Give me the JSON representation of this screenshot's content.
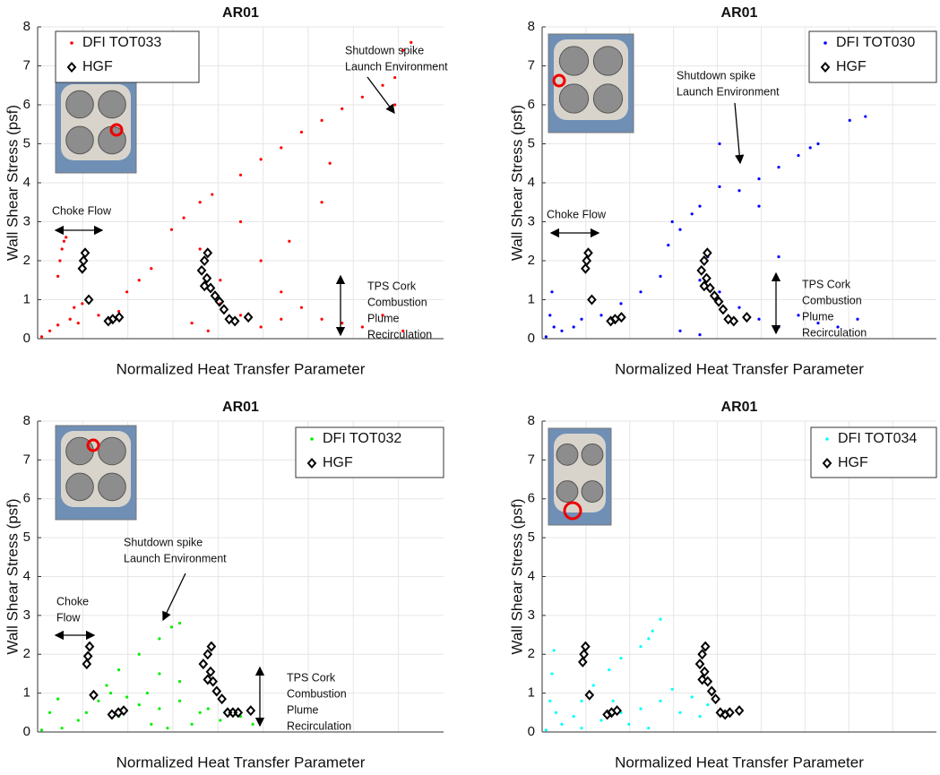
{
  "chart_data": [
    {
      "type": "scatter",
      "title": "AR01",
      "x_label": "Normalized Heat Transfer Parameter",
      "y_label": "Wall Shear Stress (psf)",
      "xlim": [
        0,
        1
      ],
      "ylim": [
        0,
        8
      ],
      "yticks": [
        0,
        1,
        2,
        3,
        4,
        5,
        6,
        7,
        8
      ],
      "grid": true,
      "legend": "upper left",
      "annotations": [
        [
          "Choke Flow"
        ],
        [
          "Shutdown spike",
          "Launch Environment"
        ],
        [
          "TPS Cork",
          "Combustion",
          "Plume",
          "Recirculation"
        ]
      ],
      "series": [
        {
          "name": "DFI TOT033",
          "color": "#ff0000",
          "marker": "dot",
          "x": [
            0.05,
            0.055,
            0.06,
            0.065,
            0.07,
            0.01,
            0.03,
            0.05,
            0.08,
            0.09,
            0.1,
            0.11,
            0.15,
            0.2,
            0.22,
            0.25,
            0.28,
            0.33,
            0.36,
            0.4,
            0.43,
            0.5,
            0.55,
            0.6,
            0.65,
            0.7,
            0.75,
            0.8,
            0.85,
            0.88,
            0.9,
            0.92,
            0.88,
            0.4,
            0.45,
            0.5,
            0.55,
            0.6,
            0.65,
            0.7,
            0.75,
            0.8,
            0.85,
            0.9,
            0.5,
            0.55,
            0.6,
            0.45,
            0.7,
            0.72,
            0.62,
            0.38,
            0.42
          ],
          "values": [
            1.6,
            2.0,
            2.3,
            2.5,
            2.6,
            0.05,
            0.2,
            0.35,
            0.5,
            0.8,
            0.4,
            0.9,
            0.6,
            0.7,
            1.2,
            1.5,
            1.8,
            2.8,
            3.1,
            3.5,
            3.7,
            4.2,
            4.6,
            4.9,
            5.3,
            5.6,
            5.9,
            6.2,
            6.5,
            6.7,
            7.4,
            7.6,
            6.0,
            2.3,
            1.5,
            3.0,
            2.0,
            1.2,
            0.8,
            0.5,
            0.4,
            0.3,
            0.6,
            0.2,
            0.6,
            0.3,
            0.5,
            0.9,
            3.5,
            4.5,
            2.5,
            0.4,
            0.2
          ]
        },
        {
          "name": "HGF",
          "color": "#000000",
          "marker": "diamond",
          "x": [
            0.117,
            0.113,
            0.11,
            0.126,
            0.174,
            0.185,
            0.201,
            0.419,
            0.411,
            0.404,
            0.417,
            0.411,
            0.426,
            0.437,
            0.448,
            0.459,
            0.472,
            0.486,
            0.519
          ],
          "values": [
            2.2,
            2.0,
            1.8,
            1.0,
            0.45,
            0.5,
            0.55,
            2.2,
            2.0,
            1.75,
            1.55,
            1.35,
            1.3,
            1.1,
            0.95,
            0.75,
            0.5,
            0.45,
            0.55
          ]
        }
      ]
    },
    {
      "type": "scatter",
      "title": "AR01",
      "x_label": "Normalized Heat Transfer Parameter",
      "y_label": "Wall Shear Stress (psf)",
      "xlim": [
        0,
        1
      ],
      "ylim": [
        0,
        8
      ],
      "yticks": [
        0,
        1,
        2,
        3,
        4,
        5,
        6,
        7,
        8
      ],
      "grid": true,
      "legend": "upper right",
      "annotations": [
        [
          "Choke Flow"
        ],
        [
          "Shutdown spike",
          "Launch Environment"
        ],
        [
          "TPS Cork",
          "Combustion",
          "Plume",
          "Recirculation"
        ]
      ],
      "series": [
        {
          "name": "DFI TOT030",
          "color": "#0000ff",
          "marker": "dot",
          "x": [
            0.01,
            0.02,
            0.025,
            0.03,
            0.05,
            0.08,
            0.1,
            0.15,
            0.2,
            0.25,
            0.3,
            0.32,
            0.35,
            0.33,
            0.38,
            0.4,
            0.45,
            0.5,
            0.55,
            0.6,
            0.65,
            0.7,
            0.78,
            0.82,
            0.68,
            0.4,
            0.42,
            0.45,
            0.5,
            0.55,
            0.6,
            0.65,
            0.7,
            0.75,
            0.8,
            0.35,
            0.4,
            0.55,
            0.45,
            0.6
          ],
          "values": [
            0.05,
            0.6,
            1.2,
            0.3,
            0.2,
            0.3,
            0.5,
            0.6,
            0.9,
            1.2,
            1.6,
            2.4,
            2.8,
            3.0,
            3.2,
            3.4,
            3.9,
            3.8,
            4.1,
            4.4,
            4.7,
            5.0,
            5.6,
            5.7,
            4.9,
            1.5,
            2.1,
            1.2,
            0.8,
            0.5,
            0.3,
            0.6,
            0.4,
            0.3,
            0.5,
            0.2,
            0.1,
            3.4,
            5.0,
            2.1
          ]
        },
        {
          "name": "HGF",
          "color": "#000000",
          "marker": "diamond",
          "x": [
            0.117,
            0.113,
            0.11,
            0.126,
            0.174,
            0.185,
            0.201,
            0.419,
            0.411,
            0.404,
            0.417,
            0.411,
            0.426,
            0.437,
            0.448,
            0.459,
            0.472,
            0.486,
            0.519
          ],
          "values": [
            2.2,
            2.0,
            1.8,
            1.0,
            0.45,
            0.5,
            0.55,
            2.2,
            2.0,
            1.75,
            1.55,
            1.35,
            1.3,
            1.1,
            0.95,
            0.75,
            0.5,
            0.45,
            0.55
          ]
        }
      ]
    },
    {
      "type": "scatter",
      "title": "AR01",
      "x_label": "Normalized Heat Transfer Parameter",
      "y_label": "Wall Shear Stress (psf)",
      "xlim": [
        0,
        1
      ],
      "ylim": [
        0,
        8
      ],
      "yticks": [
        0,
        1,
        2,
        3,
        4,
        5,
        6,
        7,
        8
      ],
      "grid": true,
      "legend": "upper right",
      "annotations": [
        [
          "Choke",
          "Flow"
        ],
        [
          "Shutdown spike",
          "Launch Environment"
        ],
        [
          "TPS Cork",
          "Combustion",
          "Plume",
          "Recirculation"
        ]
      ],
      "series": [
        {
          "name": "DFI TOT032",
          "color": "#00ee00",
          "marker": "dot",
          "x": [
            0.01,
            0.03,
            0.05,
            0.06,
            0.1,
            0.12,
            0.15,
            0.17,
            0.2,
            0.25,
            0.3,
            0.33,
            0.35,
            0.18,
            0.22,
            0.25,
            0.3,
            0.35,
            0.4,
            0.45,
            0.28,
            0.32,
            0.38,
            0.42,
            0.3,
            0.27,
            0.2,
            0.35,
            0.5,
            0.53
          ],
          "values": [
            0.05,
            0.5,
            0.85,
            0.1,
            0.3,
            0.5,
            0.8,
            1.2,
            1.6,
            2.0,
            2.4,
            2.7,
            2.8,
            1.0,
            0.9,
            0.7,
            0.6,
            0.8,
            0.5,
            0.3,
            0.2,
            0.1,
            0.2,
            0.6,
            1.5,
            1.0,
            0.4,
            1.3,
            0.4,
            0.2
          ]
        },
        {
          "name": "HGF",
          "color": "#000000",
          "marker": "diamond",
          "x": [
            0.128,
            0.124,
            0.121,
            0.138,
            0.183,
            0.199,
            0.212,
            0.428,
            0.419,
            0.408,
            0.426,
            0.419,
            0.432,
            0.441,
            0.454,
            0.468,
            0.481,
            0.494,
            0.525
          ],
          "values": [
            2.2,
            1.95,
            1.75,
            0.95,
            0.45,
            0.5,
            0.55,
            2.2,
            2.0,
            1.75,
            1.55,
            1.35,
            1.3,
            1.05,
            0.85,
            0.5,
            0.5,
            0.5,
            0.55
          ]
        }
      ]
    },
    {
      "type": "scatter",
      "title": "AR01",
      "x_label": "Normalized Heat Transfer Parameter",
      "y_label": "Wall Shear Stress (psf)",
      "xlim": [
        0,
        1
      ],
      "ylim": [
        0,
        8
      ],
      "yticks": [
        0,
        1,
        2,
        3,
        4,
        5,
        6,
        7,
        8
      ],
      "grid": true,
      "legend": "upper right",
      "annotations": [],
      "series": [
        {
          "name": "DFI TOT034",
          "color": "#00ffff",
          "marker": "dot",
          "x": [
            0.01,
            0.02,
            0.025,
            0.03,
            0.035,
            0.05,
            0.08,
            0.1,
            0.13,
            0.17,
            0.2,
            0.25,
            0.27,
            0.3,
            0.28,
            0.15,
            0.2,
            0.25,
            0.3,
            0.35,
            0.4,
            0.42,
            0.38,
            0.33,
            0.18,
            0.22,
            0.27,
            0.1
          ],
          "values": [
            0.05,
            0.8,
            1.5,
            2.1,
            0.5,
            0.2,
            0.4,
            0.8,
            1.2,
            1.6,
            1.9,
            2.2,
            2.4,
            2.9,
            2.6,
            0.3,
            0.5,
            0.6,
            0.8,
            0.5,
            0.4,
            0.7,
            0.9,
            1.1,
            0.8,
            0.2,
            0.1,
            0.1
          ]
        },
        {
          "name": "HGF",
          "color": "#000000",
          "marker": "diamond",
          "x": [
            0.11,
            0.106,
            0.103,
            0.12,
            0.165,
            0.176,
            0.19,
            0.414,
            0.406,
            0.4,
            0.412,
            0.406,
            0.42,
            0.43,
            0.44,
            0.452,
            0.464,
            0.476,
            0.5
          ],
          "values": [
            2.2,
            2.0,
            1.8,
            0.95,
            0.45,
            0.5,
            0.55,
            2.2,
            2.0,
            1.75,
            1.55,
            1.35,
            1.3,
            1.05,
            0.85,
            0.5,
            0.45,
            0.5,
            0.55
          ]
        }
      ]
    }
  ]
}
